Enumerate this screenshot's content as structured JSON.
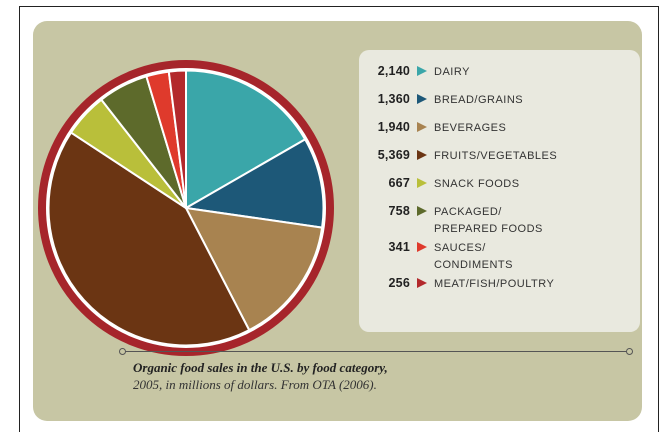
{
  "chart_data": {
    "type": "pie",
    "title": "Organic food sales in the U.S. by food category,",
    "subtitle": "2005, in millions of dollars. From OTA (2006).",
    "slices": [
      {
        "value_label": "2,140",
        "value": 2140,
        "label": [
          "DAIRY"
        ],
        "color": "#3aa6a9"
      },
      {
        "value_label": "1,360",
        "value": 1360,
        "label": [
          "BREAD/GRAINS"
        ],
        "color": "#1d5878"
      },
      {
        "value_label": "1,940",
        "value": 1940,
        "label": [
          "BEVERAGES"
        ],
        "color": "#a88350"
      },
      {
        "value_label": "5,369",
        "value": 5369,
        "label": [
          "FRUITS/VEGETABLES"
        ],
        "color": "#6b3513"
      },
      {
        "value_label": "667",
        "value": 667,
        "label": [
          "SNACK FOODS"
        ],
        "color": "#b9bf3a"
      },
      {
        "value_label": "758",
        "value": 758,
        "label": [
          "PACKAGED/",
          "PREPARED FOODS"
        ],
        "color": "#5d6a2b"
      },
      {
        "value_label": "341",
        "value": 341,
        "label": [
          "SAUCES/",
          "CONDIMENTS"
        ],
        "color": "#df3a2c"
      },
      {
        "value_label": "256",
        "value": 256,
        "label": [
          "MEAT/FISH/POULTRY"
        ],
        "color": "#b3292c"
      }
    ],
    "ring_color": "#a6252b",
    "legend_position": "right"
  }
}
